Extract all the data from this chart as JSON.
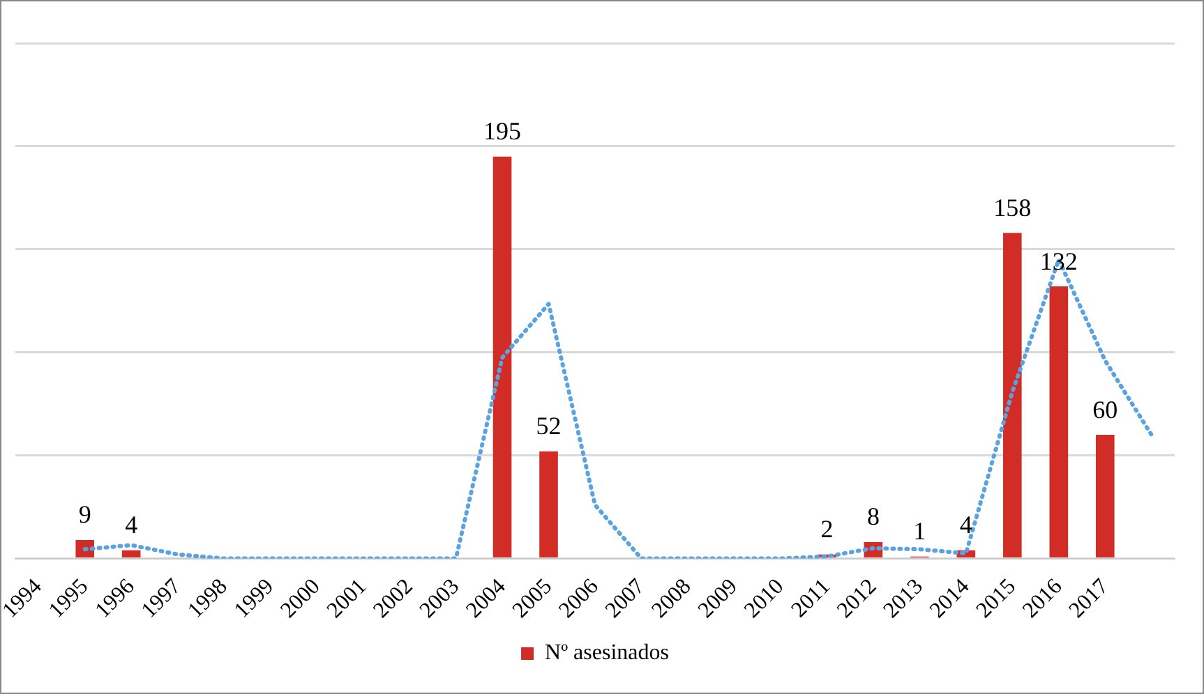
{
  "chart_data": {
    "type": "bar",
    "categories": [
      "1994",
      "1995",
      "1996",
      "1997",
      "1998",
      "1999",
      "2000",
      "2001",
      "2002",
      "2003",
      "2004",
      "2005",
      "2006",
      "2007",
      "2008",
      "2009",
      "2010",
      "2011",
      "2012",
      "2013",
      "2014",
      "2015",
      "2016",
      "2017",
      null
    ],
    "series": [
      {
        "name": "Nº asesinados",
        "color": "#d12d26",
        "values": [
          0,
          9,
          4,
          0,
          0,
          0,
          0,
          0,
          0,
          0,
          195,
          52,
          0,
          0,
          0,
          0,
          0,
          2,
          8,
          1,
          4,
          158,
          132,
          60,
          null
        ],
        "value_labels": [
          null,
          "9",
          "4",
          null,
          null,
          null,
          null,
          null,
          null,
          null,
          "195",
          "52",
          null,
          null,
          null,
          null,
          null,
          "2",
          "8",
          "1",
          "4",
          "158",
          "132",
          "60",
          null
        ]
      },
      {
        "type": "line",
        "color": "#5ba3e0",
        "line_style": "dotted",
        "values": [
          null,
          4.5,
          6.5,
          2,
          0,
          0,
          0,
          0,
          0,
          0,
          97.5,
          123.5,
          26,
          0,
          0,
          0,
          0,
          1,
          5,
          4.5,
          2.5,
          81,
          145,
          96,
          60
        ]
      }
    ],
    "ylim": [
      0,
      250
    ],
    "yticks": [
      {
        "value": 0,
        "label": null
      },
      {
        "value": 50,
        "label": null
      },
      {
        "value": 100,
        "label": null
      },
      {
        "value": 150,
        "label": null
      },
      {
        "value": 200,
        "label": null
      },
      {
        "value": 250,
        "label": null
      }
    ],
    "grid": "y",
    "legend": "bottom",
    "marker": "none",
    "tick_labels": "x"
  }
}
